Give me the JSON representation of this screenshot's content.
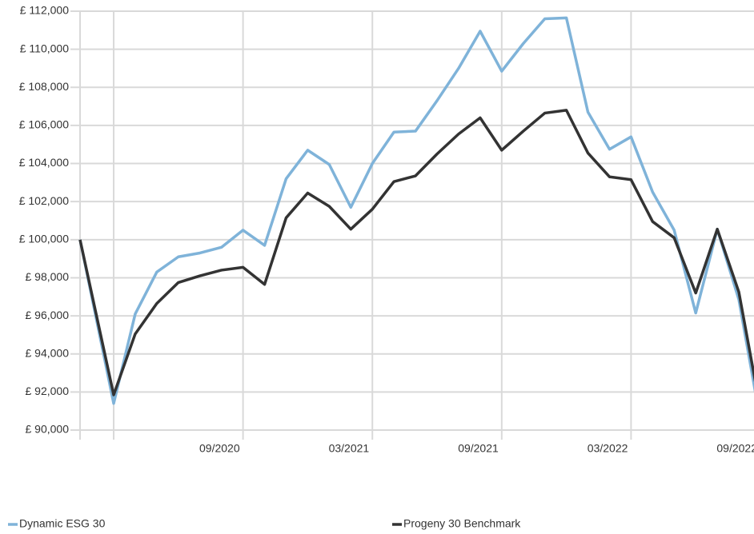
{
  "chart_data": {
    "type": "line",
    "x": [
      -1.56,
      0,
      1,
      2,
      3,
      4,
      5,
      6,
      7,
      8,
      9,
      10,
      11,
      12,
      13,
      14,
      15,
      16,
      17,
      18,
      19,
      20,
      21,
      22,
      23,
      24,
      25,
      26,
      27,
      28,
      29,
      30
    ],
    "series": [
      {
        "name": "Dynamic ESG 30",
        "color": "#7fb3d9",
        "values": [
          100000,
          91400,
          96100,
          98300,
          99100,
          99300,
          99600,
          100500,
          99700,
          103200,
          104700,
          103950,
          101700,
          104000,
          105650,
          105700,
          107300,
          109000,
          110950,
          108850,
          110300,
          111600,
          111650,
          106700,
          104750,
          105400,
          102500,
          100500,
          96150,
          100550,
          96850,
          90500
        ]
      },
      {
        "name": "Progeny 30 Benchmark",
        "color": "#333333",
        "values": [
          100000,
          91850,
          95050,
          96650,
          97750,
          98100,
          98400,
          98550,
          97650,
          101150,
          102450,
          101750,
          100550,
          101600,
          103050,
          103350,
          104500,
          105550,
          106400,
          104700,
          105700,
          106650,
          106800,
          104550,
          103300,
          103150,
          100950,
          100100,
          97200,
          100550,
          97250,
          91100
        ]
      }
    ],
    "xlim": [
      -1.56,
      30
    ],
    "xticks": [
      {
        "value": 0,
        "label": null
      },
      {
        "value": 6,
        "label": "09/2020"
      },
      {
        "value": 12,
        "label": "03/2021"
      },
      {
        "value": 18,
        "label": "09/2021"
      },
      {
        "value": 24,
        "label": "03/2022"
      },
      {
        "value": 30,
        "label": "09/2022"
      }
    ],
    "ylim": [
      90000,
      112000
    ],
    "yticks": [
      {
        "value": 90000,
        "label": "£ 90,000"
      },
      {
        "value": 92000,
        "label": "£ 92,000"
      },
      {
        "value": 94000,
        "label": "£ 94,000"
      },
      {
        "value": 96000,
        "label": "£ 96,000"
      },
      {
        "value": 98000,
        "label": "£ 98,000"
      },
      {
        "value": 100000,
        "label": "£ 100,000"
      },
      {
        "value": 102000,
        "label": "£ 102,000"
      },
      {
        "value": 104000,
        "label": "£ 104,000"
      },
      {
        "value": 106000,
        "label": "£ 106,000"
      },
      {
        "value": 108000,
        "label": "£ 108,000"
      },
      {
        "value": 110000,
        "label": "£ 110,000"
      },
      {
        "value": 112000,
        "label": "£ 112,000"
      }
    ],
    "grid": true
  }
}
